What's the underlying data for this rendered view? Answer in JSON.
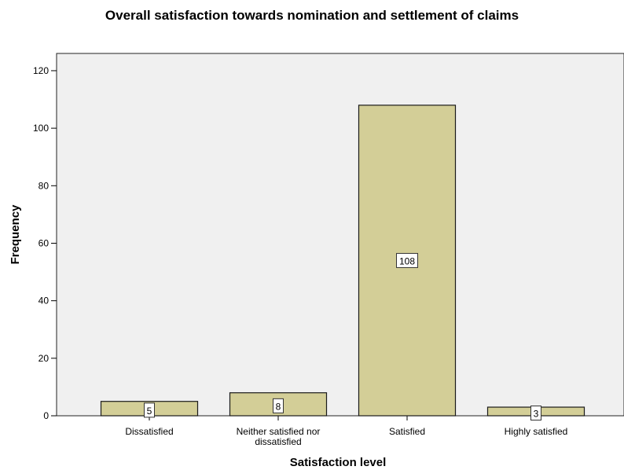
{
  "chart_data": {
    "type": "bar",
    "title": "Overall satisfaction towards nomination and settlement of claims",
    "xlabel": "Satisfaction level",
    "ylabel": "Frequency",
    "categories": [
      [
        "Dissatisfied"
      ],
      [
        "Neither satisfied nor",
        "dissatisfied"
      ],
      [
        "Satisfied"
      ],
      [
        "Highly satisfied"
      ]
    ],
    "values": [
      5,
      8,
      108,
      3
    ],
    "data_labels": [
      "5",
      "8",
      "108",
      "3"
    ],
    "y_ticks": [
      0,
      20,
      40,
      60,
      80,
      100,
      120
    ],
    "ylim": [
      0,
      126
    ],
    "grid": false,
    "legend": "none",
    "colors": {
      "plot_background": "#f0f0f0",
      "bar_fill": "#d3ce97",
      "bar_stroke": "#1a1a1a",
      "label_box": "#ffffff"
    }
  }
}
